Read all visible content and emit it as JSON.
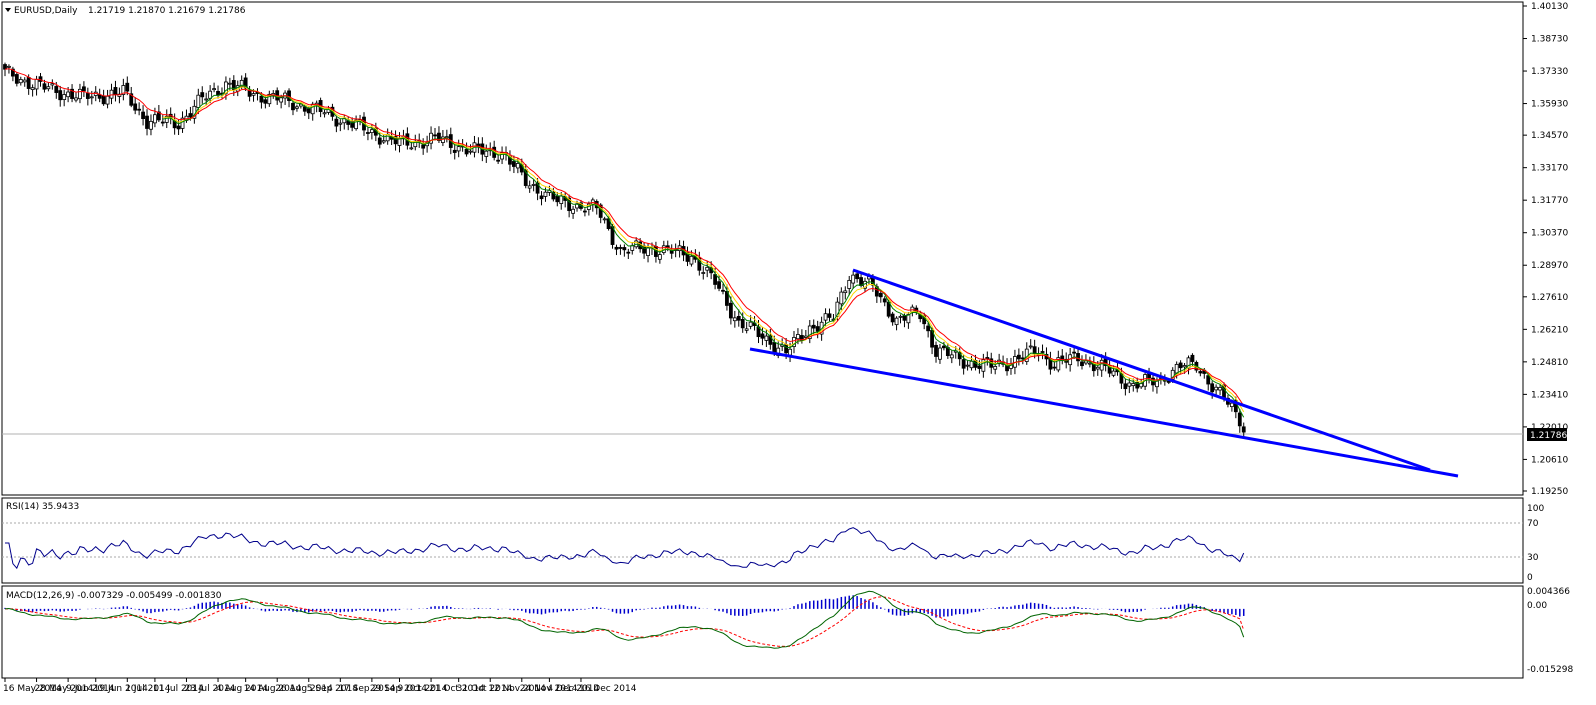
{
  "header": {
    "symbol": "EURUSD,Daily",
    "ohlc": "1.21719 1.21870 1.21679 1.21786"
  },
  "colors": {
    "background": "#ffffff",
    "frame": "#000000",
    "bull_candle": "#ffffff",
    "bear_candle": "#000000",
    "ma_fast": "#ff0000",
    "ma_mid": "#008000",
    "ma_slow": "#ffd700",
    "trendline": "#0000ff",
    "rsi": "#00008b",
    "macd_hist": "#0000cd",
    "macd_signal": "#ff0000",
    "macd_main": "#006400",
    "price_tag_bg": "#000000",
    "price_tag_text": "#ffffff"
  },
  "price_axis": {
    "ticks": [
      "1.40130",
      "1.38730",
      "1.37330",
      "1.35930",
      "1.34570",
      "1.33170",
      "1.31770",
      "1.30370",
      "1.28970",
      "1.27610",
      "1.26210",
      "1.24810",
      "1.23410",
      "1.22010",
      "1.20610",
      "1.19250"
    ],
    "current": "1.21786"
  },
  "date_axis": {
    "labels": [
      "16 May 2014",
      "28 May 2014",
      "9 Jun 2014",
      "19 Jun 2014",
      "1 Jul 2014",
      "11 Jul 2014",
      "23 Jul 2014",
      "4 Aug 2014",
      "14 Aug 2014",
      "26 Aug 2014",
      "5 Sep 2014",
      "17 Sep 2014",
      "29 Sep 2014",
      "9 Oct 2014",
      "21 Oct 2014",
      "31 Oct 2014",
      "12 Nov 2014",
      "24 Nov 2014",
      "4 Dec 2014",
      "16 Dec 2014"
    ]
  },
  "rsi_panel": {
    "label": "RSI(14) 35.9433",
    "ticks": [
      "100",
      "70",
      "30",
      "0"
    ]
  },
  "macd_panel": {
    "label": "MACD(12,26,9) -0.007329 -0.005499 -0.001830",
    "ticks": [
      "0.004366",
      "0.00",
      "-0.015298"
    ]
  },
  "chart_data": {
    "type": "candlestick",
    "symbol": "EURUSD",
    "timeframe": "Daily",
    "last_close": 1.21786,
    "price_range": [
      1.1925,
      1.4013
    ],
    "close_path": [
      [
        0,
        1.3725
      ],
      [
        10,
        1.366
      ],
      [
        20,
        1.362
      ],
      [
        30,
        1.364
      ],
      [
        36,
        1.352
      ],
      [
        44,
        1.351
      ],
      [
        50,
        1.361
      ],
      [
        56,
        1.368
      ],
      [
        64,
        1.363
      ],
      [
        70,
        1.361
      ],
      [
        80,
        1.356
      ],
      [
        90,
        1.349
      ],
      [
        100,
        1.342
      ],
      [
        110,
        1.344
      ],
      [
        118,
        1.339
      ],
      [
        126,
        1.338
      ],
      [
        132,
        1.326
      ],
      [
        140,
        1.317
      ],
      [
        150,
        1.314
      ],
      [
        156,
        1.296
      ],
      [
        164,
        1.297
      ],
      [
        174,
        1.294
      ],
      [
        180,
        1.282
      ],
      [
        186,
        1.265
      ],
      [
        194,
        1.257
      ],
      [
        198,
        1.252
      ],
      [
        204,
        1.263
      ],
      [
        210,
        1.267
      ],
      [
        214,
        1.286
      ],
      [
        220,
        1.28
      ],
      [
        226,
        1.266
      ],
      [
        232,
        1.269
      ],
      [
        236,
        1.253
      ],
      [
        244,
        1.248
      ],
      [
        250,
        1.246
      ],
      [
        256,
        1.249
      ],
      [
        262,
        1.253
      ],
      [
        266,
        1.247
      ],
      [
        272,
        1.25
      ],
      [
        280,
        1.244
      ],
      [
        286,
        1.238
      ],
      [
        292,
        1.24
      ],
      [
        298,
        1.246
      ],
      [
        302,
        1.247
      ],
      [
        306,
        1.238
      ],
      [
        310,
        1.23
      ],
      [
        314,
        1.2217
      ]
    ],
    "moving_averages": [
      "red",
      "green",
      "yellow"
    ],
    "falling_wedge": {
      "upper_line": {
        "from": [
          "2014-10-14",
          1.29
        ],
        "to": [
          "2015-01-22",
          1.201
        ]
      },
      "lower_line": {
        "from": [
          "2014-09-25",
          1.252
        ],
        "to": [
          "2015-01-22",
          1.199
        ]
      }
    },
    "rsi": {
      "period": 14,
      "last": 35.9433,
      "levels": [
        70,
        30
      ],
      "range": [
        0,
        100
      ]
    },
    "macd": {
      "params": [
        12,
        26,
        9
      ],
      "main": -0.007329,
      "signal": -0.005499,
      "histogram": -0.00183,
      "range": [
        -0.015298,
        0.004366
      ]
    }
  }
}
